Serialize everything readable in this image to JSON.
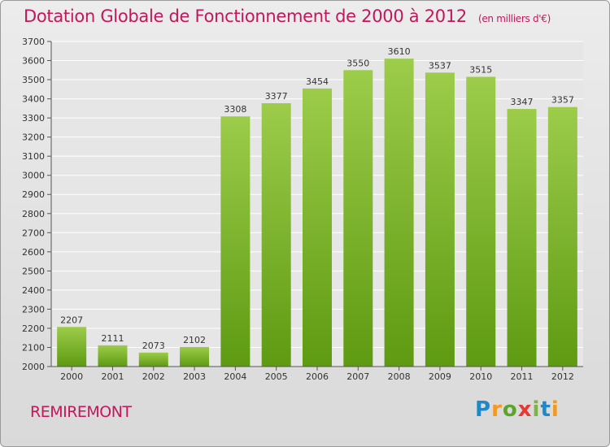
{
  "header": {
    "title": "Dotation Globale de Fonctionnement de 2000 à 2012",
    "unit": "(en milliers d'€)"
  },
  "footer": {
    "commune": "REMIREMONT",
    "logo": "Proxiti"
  },
  "colors": {
    "bar_top": "#9ccc4a",
    "bar_bottom": "#5e9a12",
    "title": "#c2185b",
    "grid": "#ffffff",
    "plot_background": "#e6e6e6"
  },
  "chart_data": {
    "type": "bar",
    "title": "Dotation Globale de Fonctionnement de 2000 à 2012",
    "subtitle": "(en milliers d'€)",
    "xlabel": "",
    "ylabel": "",
    "categories": [
      "2000",
      "2001",
      "2002",
      "2003",
      "2004",
      "2005",
      "2006",
      "2007",
      "2008",
      "2009",
      "2010",
      "2011",
      "2012"
    ],
    "values": [
      2207,
      2111,
      2073,
      2102,
      3308,
      3377,
      3454,
      3550,
      3610,
      3537,
      3515,
      3347,
      3357
    ],
    "ylim": [
      2000,
      3700
    ],
    "yticks": [
      2000,
      2100,
      2200,
      2300,
      2400,
      2500,
      2600,
      2700,
      2800,
      2900,
      3000,
      3100,
      3200,
      3300,
      3400,
      3500,
      3600,
      3700
    ],
    "grid": true,
    "data_labels": true
  }
}
